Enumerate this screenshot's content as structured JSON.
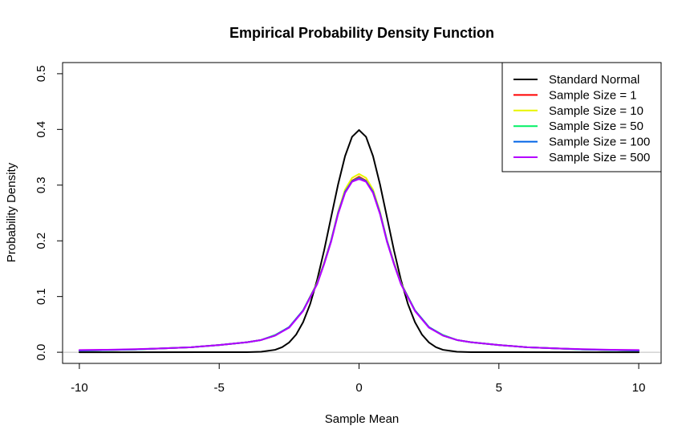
{
  "chart_data": {
    "type": "line",
    "title": "Empirical Probability Density Function",
    "xlabel": "Sample Mean",
    "ylabel": "Probability Density",
    "xlim": [
      -10.6,
      10.8
    ],
    "ylim": [
      -0.02,
      0.52
    ],
    "xticks": [
      -10,
      -5,
      0,
      5,
      10
    ],
    "xtick_labels": [
      "-10",
      "-5",
      "0",
      "5",
      "10"
    ],
    "yticks": [
      0.0,
      0.1,
      0.2,
      0.3,
      0.4,
      0.5
    ],
    "ytick_labels": [
      "0.0",
      "0.1",
      "0.2",
      "0.3",
      "0.4",
      "0.5"
    ],
    "grid": false,
    "horizontal_reference_line": {
      "y": 0,
      "color": "#bebebe"
    },
    "legend_position": "top-right",
    "series": [
      {
        "name": "Standard Normal",
        "color": "#000000",
        "x": [
          -10,
          -4,
          -3.5,
          -3,
          -2.75,
          -2.5,
          -2.25,
          -2,
          -1.75,
          -1.5,
          -1.25,
          -1,
          -0.75,
          -0.5,
          -0.25,
          0,
          0.25,
          0.5,
          0.75,
          1,
          1.25,
          1.5,
          1.75,
          2,
          2.25,
          2.5,
          2.75,
          3,
          3.5,
          4,
          10
        ],
        "y": [
          0.0,
          0.0001,
          0.0009,
          0.0044,
          0.0091,
          0.0175,
          0.0317,
          0.054,
          0.0863,
          0.1295,
          0.1826,
          0.242,
          0.3011,
          0.3521,
          0.3867,
          0.3989,
          0.3867,
          0.3521,
          0.3011,
          0.242,
          0.1826,
          0.1295,
          0.0863,
          0.054,
          0.0317,
          0.0175,
          0.0091,
          0.0044,
          0.0009,
          0.0001,
          0.0
        ]
      },
      {
        "name": "Sample Size = 1",
        "color": "#ff0000",
        "x": [
          -10,
          -9,
          -8,
          -7,
          -6,
          -5,
          -4,
          -3.5,
          -3,
          -2.5,
          -2,
          -1.5,
          -1.25,
          -1,
          -0.75,
          -0.5,
          -0.25,
          0,
          0.25,
          0.5,
          0.75,
          1,
          1.25,
          1.5,
          2,
          2.5,
          3,
          3.5,
          4,
          5,
          6,
          7,
          8,
          9,
          10
        ],
        "y": [
          0.003,
          0.004,
          0.005,
          0.007,
          0.009,
          0.013,
          0.018,
          0.022,
          0.03,
          0.045,
          0.075,
          0.124,
          0.16,
          0.2,
          0.25,
          0.288,
          0.308,
          0.315,
          0.308,
          0.288,
          0.25,
          0.2,
          0.16,
          0.124,
          0.075,
          0.045,
          0.03,
          0.022,
          0.018,
          0.013,
          0.009,
          0.007,
          0.005,
          0.004,
          0.003
        ]
      },
      {
        "name": "Sample Size = 10",
        "color": "#e8f500",
        "x": [
          -10,
          -9,
          -8,
          -7,
          -6,
          -5,
          -4,
          -3.5,
          -3,
          -2.5,
          -2,
          -1.5,
          -1.25,
          -1,
          -0.75,
          -0.5,
          -0.25,
          0,
          0.25,
          0.5,
          0.75,
          1,
          1.25,
          1.5,
          2,
          2.5,
          3,
          3.5,
          4,
          5,
          6,
          7,
          8,
          9,
          10
        ],
        "y": [
          0.003,
          0.004,
          0.005,
          0.007,
          0.009,
          0.013,
          0.018,
          0.022,
          0.03,
          0.045,
          0.075,
          0.124,
          0.161,
          0.201,
          0.252,
          0.292,
          0.313,
          0.32,
          0.313,
          0.292,
          0.252,
          0.201,
          0.161,
          0.124,
          0.075,
          0.045,
          0.03,
          0.022,
          0.018,
          0.013,
          0.009,
          0.007,
          0.005,
          0.004,
          0.003
        ]
      },
      {
        "name": "Sample Size = 50",
        "color": "#00f064",
        "x": [
          -10,
          -9,
          -8,
          -7,
          -6,
          -5,
          -4,
          -3.5,
          -3,
          -2.5,
          -2,
          -1.5,
          -1.25,
          -1,
          -0.75,
          -0.5,
          -0.25,
          0,
          0.25,
          0.5,
          0.75,
          1,
          1.25,
          1.5,
          2,
          2.5,
          3,
          3.5,
          4,
          5,
          6,
          7,
          8,
          9,
          10
        ],
        "y": [
          0.003,
          0.004,
          0.005,
          0.007,
          0.009,
          0.013,
          0.018,
          0.022,
          0.031,
          0.045,
          0.075,
          0.123,
          0.159,
          0.199,
          0.249,
          0.287,
          0.307,
          0.313,
          0.307,
          0.287,
          0.249,
          0.199,
          0.159,
          0.123,
          0.075,
          0.045,
          0.031,
          0.022,
          0.018,
          0.013,
          0.009,
          0.007,
          0.005,
          0.004,
          0.003
        ]
      },
      {
        "name": "Sample Size = 100",
        "color": "#0064e6",
        "x": [
          -10,
          -9,
          -8,
          -7,
          -6,
          -5,
          -4,
          -3.5,
          -3,
          -2.5,
          -2,
          -1.5,
          -1.25,
          -1,
          -0.75,
          -0.5,
          -0.25,
          0,
          0.25,
          0.5,
          0.75,
          1,
          1.25,
          1.5,
          2,
          2.5,
          3,
          3.5,
          4,
          5,
          6,
          7,
          8,
          9,
          10
        ],
        "y": [
          0.003,
          0.004,
          0.005,
          0.007,
          0.009,
          0.013,
          0.018,
          0.022,
          0.03,
          0.045,
          0.075,
          0.123,
          0.159,
          0.2,
          0.25,
          0.288,
          0.307,
          0.312,
          0.307,
          0.288,
          0.25,
          0.2,
          0.159,
          0.123,
          0.075,
          0.045,
          0.03,
          0.022,
          0.018,
          0.013,
          0.009,
          0.007,
          0.005,
          0.004,
          0.003
        ]
      },
      {
        "name": "Sample Size = 500",
        "color": "#b400ff",
        "x": [
          -10,
          -9,
          -8,
          -7,
          -6,
          -5,
          -4,
          -3.5,
          -3,
          -2.5,
          -2,
          -1.5,
          -1.25,
          -1,
          -0.75,
          -0.5,
          -0.25,
          0,
          0.25,
          0.5,
          0.75,
          1,
          1.25,
          1.5,
          2,
          2.5,
          3,
          3.5,
          4,
          5,
          6,
          7,
          8,
          9,
          10
        ],
        "y": [
          0.004,
          0.0045,
          0.0055,
          0.007,
          0.009,
          0.013,
          0.018,
          0.022,
          0.03,
          0.044,
          0.074,
          0.122,
          0.158,
          0.198,
          0.248,
          0.286,
          0.306,
          0.311,
          0.306,
          0.286,
          0.248,
          0.198,
          0.158,
          0.122,
          0.074,
          0.044,
          0.03,
          0.022,
          0.018,
          0.013,
          0.009,
          0.007,
          0.0055,
          0.0045,
          0.004
        ]
      }
    ]
  }
}
